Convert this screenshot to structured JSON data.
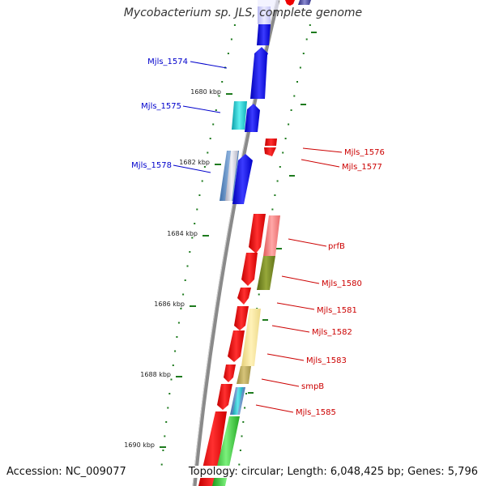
{
  "genome": {
    "title": "Mycobacterium sp. JLS, complete genome",
    "accession_text": "Accession: NC_009077",
    "topology_text": "Topology: circular; Length: 6,048,425 bp; Genes: 5,796"
  },
  "colors": {
    "backbone": "#8a8a8a",
    "tick": "#1e7b1e",
    "forward_label": "#0000cc",
    "reverse_label": "#cc0000"
  },
  "scale": {
    "unit": "kbp",
    "marks": [
      "1680 kbp",
      "1682 kbp",
      "1684 kbp",
      "1686 kbp",
      "1688 kbp",
      "1690 kbp"
    ]
  },
  "gene_labels": {
    "left": [
      "Mjls_1574",
      "Mjls_1575",
      "Mjls_1578"
    ],
    "right": [
      "Mjls_1576",
      "Mjls_1577",
      "prfB",
      "Mjls_1580",
      "Mjls_1581",
      "Mjls_1582",
      "Mjls_1583",
      "smpB",
      "Mjls_1585"
    ]
  }
}
